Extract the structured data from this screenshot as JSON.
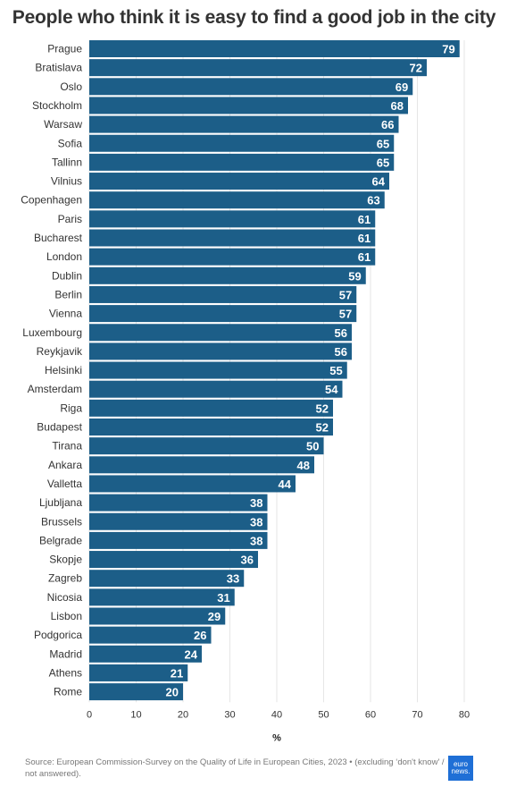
{
  "title": "People who think it is easy to find a good job in the city",
  "source": "Source: European Commission-Survey on the Quality of Life in European Cities, 2023 • (excluding ‘don't know' / not answered).",
  "logo": {
    "line1": "euro",
    "line2": "news."
  },
  "colors": {
    "bar": "#1c5e88",
    "grid": "#e6e6e6",
    "logo": "#1f6fd6"
  },
  "chart_data": {
    "type": "bar",
    "orientation": "horizontal",
    "categories": [
      "Prague",
      "Bratislava",
      "Oslo",
      "Stockholm",
      "Warsaw",
      "Sofia",
      "Tallinn",
      "Vilnius",
      "Copenhagen",
      "Paris",
      "Bucharest",
      "London",
      "Dublin",
      "Berlin",
      "Vienna",
      "Luxembourg",
      "Reykjavik",
      "Helsinki",
      "Amsterdam",
      "Riga",
      "Budapest",
      "Tirana",
      "Ankara",
      "Valletta",
      "Ljubljana",
      "Brussels",
      "Belgrade",
      "Skopje",
      "Zagreb",
      "Nicosia",
      "Lisbon",
      "Podgorica",
      "Madrid",
      "Athens",
      "Rome"
    ],
    "values": [
      79,
      72,
      69,
      68,
      66,
      65,
      65,
      64,
      63,
      61,
      61,
      61,
      59,
      57,
      57,
      56,
      56,
      55,
      54,
      52,
      52,
      50,
      48,
      44,
      38,
      38,
      38,
      36,
      33,
      31,
      29,
      26,
      24,
      21,
      20
    ],
    "xlabel": "%",
    "xlim": [
      0,
      80
    ],
    "xticks": [
      "0",
      "10",
      "20",
      "30",
      "40",
      "50",
      "60",
      "70",
      "80"
    ],
    "grid": true
  }
}
